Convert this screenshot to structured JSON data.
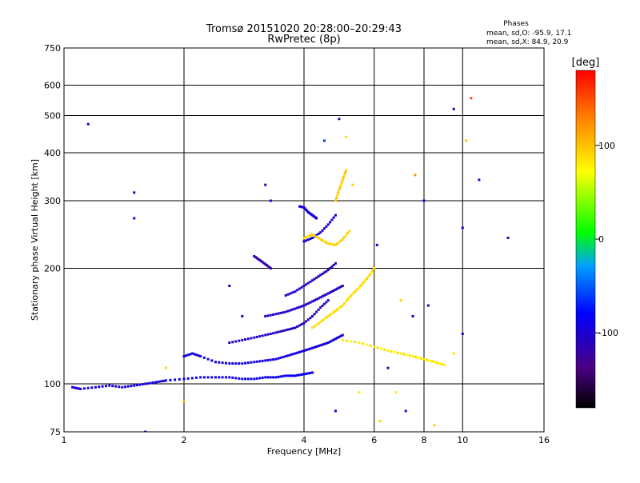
{
  "chart_data": {
    "type": "scatter",
    "title": "Tromsø 20151020 20:28:00–20:29:43",
    "subtitle": "RwPretec (8p)",
    "xlabel": "Frequency [MHz]",
    "ylabel": "Stationary phase Virtual Height [km]",
    "x_scale": "log",
    "y_scale": "log",
    "xlim": [
      1,
      16
    ],
    "ylim": [
      75,
      750
    ],
    "x_ticks": [
      1,
      2,
      4,
      6,
      8,
      10,
      16
    ],
    "y_ticks": [
      75,
      100,
      200,
      300,
      400,
      500,
      600,
      750
    ],
    "grid": true,
    "stats": {
      "heading": "Phases",
      "line_o": "mean, sd,O:  -95.9, 17.1",
      "line_x": "mean, sd,X:   84.9, 20.9"
    },
    "colorbar": {
      "label": "[deg]",
      "ticks": [
        100,
        0,
        -100
      ],
      "range": [
        -180,
        180
      ]
    },
    "traces": [
      {
        "name": "",
        "phase": -100,
        "x": [
          1.05,
          1.1,
          1.2,
          1.3,
          1.4,
          1.5,
          1.6,
          1.7,
          1.8
        ],
        "y": [
          98,
          97,
          98,
          99,
          98,
          99,
          100,
          101,
          102
        ]
      },
      {
        "name": "",
        "phase": -90,
        "x": [
          1.8,
          2.0,
          2.2,
          2.4,
          2.6,
          2.8,
          3.0,
          3.2,
          3.4,
          3.6,
          3.8,
          4.0,
          4.2
        ],
        "y": [
          102,
          103,
          104,
          104,
          104,
          103,
          103,
          104,
          104,
          105,
          105,
          106,
          107
        ]
      },
      {
        "name": "",
        "phase": -95,
        "x": [
          2.0,
          2.1,
          2.2,
          2.4,
          2.6,
          2.8,
          3.0,
          3.2,
          3.4,
          3.6,
          3.8,
          4.0,
          4.2,
          4.4,
          4.6,
          4.8,
          5.0
        ],
        "y": [
          118,
          120,
          118,
          114,
          113,
          113,
          114,
          115,
          116,
          118,
          120,
          122,
          124,
          126,
          128,
          131,
          134
        ]
      },
      {
        "name": "",
        "phase": -110,
        "x": [
          2.6,
          2.8,
          3.0,
          3.2,
          3.4,
          3.6,
          3.8,
          4.0,
          4.2,
          4.4,
          4.6
        ],
        "y": [
          128,
          130,
          132,
          134,
          136,
          138,
          140,
          144,
          150,
          158,
          165
        ]
      },
      {
        "name": "",
        "phase": -105,
        "x": [
          3.2,
          3.4,
          3.6,
          3.8,
          4.0,
          4.2,
          4.4,
          4.6,
          4.8,
          5.0
        ],
        "y": [
          150,
          152,
          154,
          157,
          160,
          164,
          168,
          172,
          176,
          180
        ]
      },
      {
        "name": "",
        "phase": -110,
        "x": [
          3.6,
          3.8,
          4.0,
          4.2,
          4.4,
          4.6,
          4.8
        ],
        "y": [
          170,
          174,
          180,
          186,
          192,
          198,
          206
        ]
      },
      {
        "name": "",
        "phase": -120,
        "x": [
          3.0,
          3.1,
          3.2,
          3.3
        ],
        "y": [
          215,
          210,
          205,
          200
        ]
      },
      {
        "name": "",
        "phase": -100,
        "x": [
          3.9,
          4.0,
          4.1,
          4.2,
          4.3
        ],
        "y": [
          290,
          288,
          280,
          275,
          270
        ]
      },
      {
        "name": "",
        "phase": -100,
        "x": [
          4.0,
          4.2,
          4.4,
          4.6,
          4.8
        ],
        "y": [
          235,
          240,
          248,
          260,
          275
        ]
      },
      {
        "name": "",
        "phase": 90,
        "x": [
          4.0,
          4.2,
          4.4,
          4.6,
          4.8,
          5.0,
          5.2
        ],
        "y": [
          240,
          245,
          238,
          232,
          230,
          238,
          250
        ]
      },
      {
        "name": "",
        "phase": 95,
        "x": [
          4.8,
          4.9,
          5.0,
          5.1
        ],
        "y": [
          300,
          320,
          340,
          360
        ]
      },
      {
        "name": "",
        "phase": 85,
        "x": [
          4.2,
          4.4,
          4.6,
          4.8,
          5.0,
          5.2,
          5.4,
          5.6,
          5.8,
          6.0
        ],
        "y": [
          140,
          145,
          150,
          155,
          160,
          168,
          175,
          182,
          190,
          200
        ]
      },
      {
        "name": "",
        "phase": 80,
        "x": [
          5.0,
          5.5,
          6.0,
          6.5,
          7.0,
          7.5,
          8.0,
          8.5,
          9.0
        ],
        "y": [
          130,
          128,
          125,
          122,
          120,
          118,
          116,
          114,
          112
        ]
      }
    ],
    "scatter_points": [
      {
        "x": 1.15,
        "y": 475,
        "phase": -110
      },
      {
        "x": 1.5,
        "y": 315,
        "phase": -110
      },
      {
        "x": 1.5,
        "y": 270,
        "phase": -100
      },
      {
        "x": 9.5,
        "y": 520,
        "phase": -110
      },
      {
        "x": 10.5,
        "y": 555,
        "phase": 150
      },
      {
        "x": 10.2,
        "y": 430,
        "phase": 100
      },
      {
        "x": 11,
        "y": 340,
        "phase": -110
      },
      {
        "x": 13,
        "y": 240,
        "phase": -110
      },
      {
        "x": 10,
        "y": 255,
        "phase": -100
      },
      {
        "x": 4.5,
        "y": 430,
        "phase": -60
      },
      {
        "x": 4.9,
        "y": 490,
        "phase": -110
      },
      {
        "x": 5.1,
        "y": 440,
        "phase": 85
      },
      {
        "x": 3.3,
        "y": 300,
        "phase": -100
      },
      {
        "x": 3.2,
        "y": 330,
        "phase": -110
      },
      {
        "x": 2.6,
        "y": 180,
        "phase": -100
      },
      {
        "x": 2.8,
        "y": 150,
        "phase": -120
      },
      {
        "x": 1.8,
        "y": 110,
        "phase": 90
      },
      {
        "x": 7.0,
        "y": 165,
        "phase": 90
      },
      {
        "x": 7.5,
        "y": 150,
        "phase": -100
      },
      {
        "x": 8.2,
        "y": 160,
        "phase": -100
      },
      {
        "x": 6.5,
        "y": 110,
        "phase": -100
      },
      {
        "x": 6.8,
        "y": 95,
        "phase": 80
      },
      {
        "x": 7.2,
        "y": 85,
        "phase": -100
      },
      {
        "x": 8.5,
        "y": 78,
        "phase": 90
      },
      {
        "x": 9.5,
        "y": 120,
        "phase": 85
      },
      {
        "x": 10.0,
        "y": 135,
        "phase": -100
      },
      {
        "x": 5.5,
        "y": 95,
        "phase": 80
      },
      {
        "x": 4.8,
        "y": 85,
        "phase": -100
      },
      {
        "x": 6.2,
        "y": 80,
        "phase": 90
      },
      {
        "x": 2.0,
        "y": 90,
        "phase": 100
      },
      {
        "x": 1.6,
        "y": 75,
        "phase": -110
      },
      {
        "x": 8.0,
        "y": 300,
        "phase": -100
      },
      {
        "x": 7.6,
        "y": 350,
        "phase": 120
      },
      {
        "x": 5.3,
        "y": 330,
        "phase": 90
      },
      {
        "x": 6.1,
        "y": 230,
        "phase": -100
      }
    ]
  }
}
